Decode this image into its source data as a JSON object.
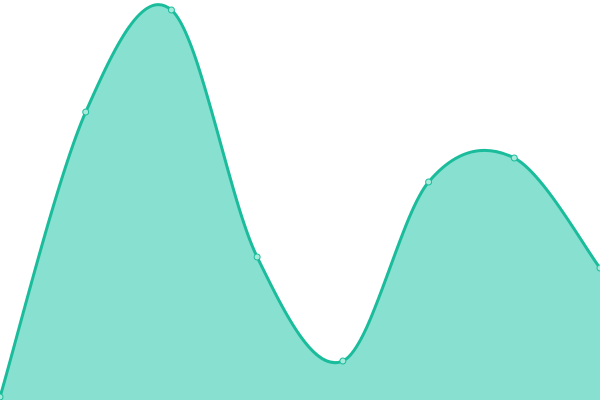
{
  "chart_data": {
    "type": "area",
    "title": "",
    "xlabel": "",
    "ylabel": "",
    "x": [
      0,
      1,
      2,
      3,
      4,
      5,
      6,
      7
    ],
    "series": [
      {
        "values": [
          0.75,
          72,
          97.5,
          35.75,
          9.75,
          54.5,
          60.5,
          33
        ]
      }
    ],
    "ylim": [
      0,
      100
    ],
    "grid": false,
    "axes_visible": false,
    "curve": "smooth",
    "markers": true,
    "colors": {
      "fill": "#88e0d0",
      "stroke": "#1abc9c",
      "marker_fill": "#a6ead9"
    }
  }
}
